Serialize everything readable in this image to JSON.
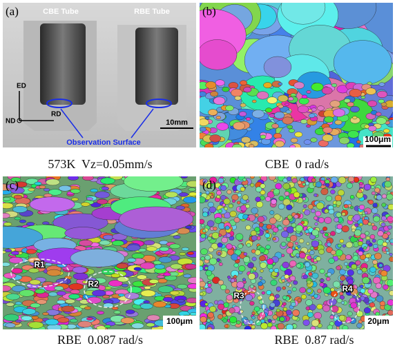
{
  "panels": [
    {
      "label": "(a)",
      "caption": "573K  Vz=0.05mm/s",
      "tube_labels": [
        "CBE Tube",
        "RBE Tube"
      ],
      "axes": [
        "ED",
        "RD",
        "ND"
      ],
      "scale_bar": "10mm",
      "annotation": "Observation Surface"
    },
    {
      "label": "(b)",
      "caption": "CBE  0 rad/s",
      "scale_bar": "100μm"
    },
    {
      "label": "(c)",
      "caption": "RBE  0.087 rad/s",
      "scale_bar": "100μm",
      "regions": [
        "R1",
        "R2"
      ]
    },
    {
      "label": "(d)",
      "caption": "RBE  0.87 rad/s",
      "scale_bar": "20μm",
      "regions": [
        "R3",
        "R4"
      ]
    }
  ]
}
